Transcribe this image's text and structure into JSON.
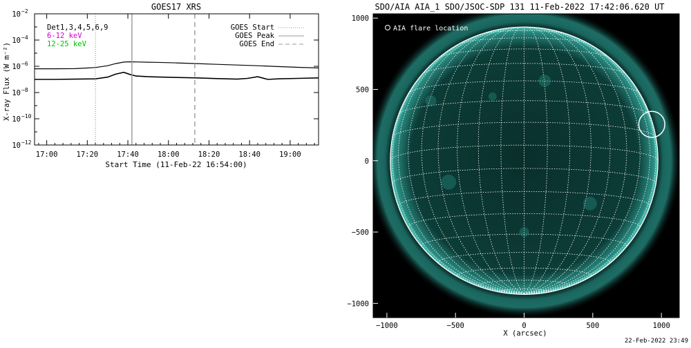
{
  "goes_panel": {
    "title": "GOES17 XRS",
    "ylabel": "X-ray Flux (W m⁻²)",
    "xlabel": "Start Time (11-Feb-22 16:54:00)",
    "det_label": "Det1,3,4,5,6,9",
    "band_labels": [
      {
        "text": "6-12 keV",
        "color": "#d000d0"
      },
      {
        "text": "12-25 keV",
        "color": "#00c000"
      }
    ],
    "legend": [
      {
        "label": "GOES Start",
        "style": "dotted"
      },
      {
        "label": "GOES Peak",
        "style": "solid"
      },
      {
        "label": "GOES End",
        "style": "dashed"
      }
    ]
  },
  "aia_panel": {
    "title": "SDO/AIA AIA_1 SDO/JSOC-SDP 131 11-Feb-2022 17:42:06.620 UT",
    "flare_label": "AIA flare location",
    "xlabel": "X (arcsec)",
    "timestamp": "22-Feb-2022 23:49",
    "colors": {
      "disk": "#0b3a36",
      "limb": "#2a9a8e",
      "background": "#000000"
    }
  },
  "chart_data": [
    {
      "type": "line",
      "title": "GOES17 XRS",
      "xlabel": "Start Time (11-Feb-22 16:54:00)",
      "ylabel": "X-ray Flux (W m⁻²)",
      "x_unit": "minutes after 16:54:00",
      "xlim": [
        0,
        140
      ],
      "ylim": [
        1e-12,
        0.01
      ],
      "yscale": "log",
      "x_ticks": [
        6,
        26,
        46,
        66,
        86,
        106,
        126
      ],
      "x_tick_labels": [
        "17:00",
        "17:20",
        "17:40",
        "18:00",
        "18:20",
        "18:40",
        "19:00"
      ],
      "y_ticks": [
        1e-12,
        1e-10,
        1e-08,
        1e-06,
        0.0001,
        0.01
      ],
      "y_tick_labels": [
        {
          "base": "10",
          "exp": "-12"
        },
        {
          "base": "10",
          "exp": "-10"
        },
        {
          "base": "10",
          "exp": "-8"
        },
        {
          "base": "10",
          "exp": "-6"
        },
        {
          "base": "10",
          "exp": "-4"
        },
        {
          "base": "10",
          "exp": "-2"
        }
      ],
      "series": [
        {
          "name": "6-12 keV",
          "color": "#000000",
          "x": [
            0,
            10,
            20,
            30,
            36,
            40,
            44,
            47,
            50,
            56,
            60,
            70,
            80,
            90,
            100,
            110,
            120,
            130,
            140
          ],
          "y": [
            6.5e-07,
            6.5e-07,
            6.6e-07,
            8e-07,
            1.1e-06,
            1.6e-06,
            2.1e-06,
            2.2e-06,
            2.15e-06,
            2.05e-06,
            2e-06,
            1.8e-06,
            1.6e-06,
            1.4e-06,
            1.25e-06,
            1.1e-06,
            9.5e-07,
            8.3e-07,
            7.5e-07
          ]
        },
        {
          "name": "12-25 keV",
          "color": "#000000",
          "x": [
            0,
            10,
            20,
            30,
            36,
            40,
            44,
            47,
            50,
            56,
            60,
            70,
            80,
            90,
            100,
            105,
            110,
            115,
            120,
            130,
            140
          ],
          "y": [
            1e-07,
            1e-07,
            1.05e-07,
            1.1e-07,
            1.5e-07,
            2.5e-07,
            3.5e-07,
            2.4e-07,
            1.8e-07,
            1.6e-07,
            1.55e-07,
            1.4e-07,
            1.3e-07,
            1.15e-07,
            1.05e-07,
            1.2e-07,
            1.6e-07,
            1e-07,
            1.1e-07,
            1.2e-07,
            1.3e-07
          ]
        }
      ],
      "markers": {
        "goes_start": 30,
        "goes_peak": 48,
        "goes_end": 79
      }
    },
    {
      "type": "scatter",
      "title": "SDO/AIA AIA_1 SDO/JSOC-SDP 131 11-Feb-2022 17:42:06.620 UT",
      "xlabel": "X (arcsec)",
      "xlim": [
        -1100,
        1130
      ],
      "ylim": [
        -1100,
        1030
      ],
      "x_ticks": [
        -1000,
        -500,
        0,
        500,
        1000
      ],
      "y_ticks": [
        -1000,
        -500,
        0,
        500,
        1000
      ],
      "x_tick_labels": [
        "−1000",
        "−500",
        "0",
        "500",
        "1000"
      ],
      "y_tick_labels": [
        "1000",
        "500",
        "0",
        "−500",
        "−1000"
      ],
      "solar_radius_arcsec": 975,
      "grid_step_deg": 10,
      "flare_location": {
        "x": 930,
        "y": 255,
        "radius": 95
      }
    }
  ]
}
